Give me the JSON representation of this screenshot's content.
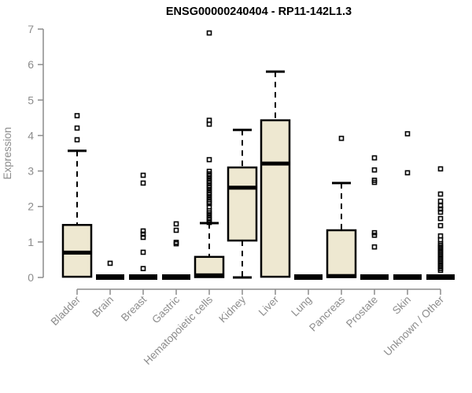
{
  "title": "ENSG00000240404 - RP11-142L1.3",
  "chart_data": {
    "type": "boxplot",
    "title": "ENSG00000240404 - RP11-142L1.3",
    "xlabel": "",
    "ylabel": "Expression",
    "ylim": [
      0,
      7
    ],
    "yticks": [
      0,
      1,
      2,
      3,
      4,
      5,
      6,
      7
    ],
    "grid": false,
    "legend": null,
    "colors": {
      "box_fill": "#EEE8D1",
      "box_stroke": "#000000",
      "median": "#000000",
      "whisker": "#000000",
      "outlier": "#000000",
      "axis": "#8C8C8C",
      "tick_label": "#8C8C8C",
      "title": "#000000",
      "background": "#FFFFFF"
    },
    "categories": [
      "Bladder",
      "Brain",
      "Breast",
      "Gastric",
      "Hematopoietic cells",
      "Kidney",
      "Liver",
      "Lung",
      "Pancreas",
      "Prostate",
      "Skin",
      "Unknown / Other"
    ],
    "boxes": [
      {
        "category": "Bladder",
        "flat": false,
        "q1": 0.02,
        "median": 0.7,
        "q3": 1.48,
        "whisker_low": null,
        "whisker_high": 3.57,
        "outliers": [
          4.56,
          4.21,
          3.88
        ]
      },
      {
        "category": "Brain",
        "flat": true,
        "q1": 0.0,
        "median": 0.02,
        "q3": 0.04,
        "whisker_low": null,
        "whisker_high": null,
        "outliers": [
          0.4
        ]
      },
      {
        "category": "Breast",
        "flat": true,
        "q1": 0.0,
        "median": 0.02,
        "q3": 0.04,
        "whisker_low": null,
        "whisker_high": null,
        "outliers": [
          2.88,
          2.66,
          1.31,
          1.22,
          1.13,
          0.71,
          0.25
        ]
      },
      {
        "category": "Gastric",
        "flat": true,
        "q1": 0.0,
        "median": 0.02,
        "q3": 0.04,
        "whisker_low": null,
        "whisker_high": null,
        "outliers": [
          1.51,
          1.33,
          0.99,
          0.95
        ]
      },
      {
        "category": "Hematopoietic cells",
        "flat": false,
        "q1": 0.01,
        "median": 0.06,
        "q3": 0.58,
        "whisker_low": null,
        "whisker_high": 1.53,
        "outliers": [
          6.89,
          4.43,
          4.32,
          3.32,
          2.99,
          2.92,
          2.86,
          2.79,
          2.72,
          2.66,
          2.59,
          2.53,
          2.46,
          2.39,
          2.33,
          2.26,
          2.19,
          2.13,
          2.08,
          1.99,
          1.88,
          1.82,
          1.75,
          1.68,
          1.62,
          1.55
        ]
      },
      {
        "category": "Kidney",
        "flat": false,
        "q1": 1.04,
        "median": 2.53,
        "q3": 3.1,
        "whisker_low": 0.0,
        "whisker_high": 4.16,
        "outliers": []
      },
      {
        "category": "Liver",
        "flat": false,
        "q1": 0.02,
        "median": 3.21,
        "q3": 4.43,
        "whisker_low": null,
        "whisker_high": 5.8,
        "outliers": []
      },
      {
        "category": "Lung",
        "flat": true,
        "q1": 0.0,
        "median": 0.02,
        "q3": 0.04,
        "whisker_low": null,
        "whisker_high": null,
        "outliers": []
      },
      {
        "category": "Pancreas",
        "flat": false,
        "q1": 0.01,
        "median": 0.04,
        "q3": 1.33,
        "whisker_low": null,
        "whisker_high": 2.66,
        "outliers": [
          3.92
        ]
      },
      {
        "category": "Prostate",
        "flat": true,
        "q1": 0.0,
        "median": 0.02,
        "q3": 0.04,
        "whisker_low": null,
        "whisker_high": null,
        "outliers": [
          3.37,
          3.03,
          2.74,
          2.68,
          1.26,
          1.19,
          0.86
        ]
      },
      {
        "category": "Skin",
        "flat": true,
        "q1": 0.0,
        "median": 0.02,
        "q3": 0.04,
        "whisker_low": null,
        "whisker_high": null,
        "outliers": [
          4.05,
          2.95
        ]
      },
      {
        "category": "Unknown / Other",
        "flat": true,
        "q1": 0.0,
        "median": 0.02,
        "q3": 0.04,
        "whisker_low": null,
        "whisker_high": null,
        "outliers": [
          3.06,
          2.35,
          2.15,
          2.02,
          1.93,
          1.84,
          1.66,
          1.46,
          1.17,
          1.06,
          0.95,
          0.9,
          0.85,
          0.8,
          0.75,
          0.7,
          0.65,
          0.6,
          0.55,
          0.5,
          0.45,
          0.4,
          0.35,
          0.3,
          0.25,
          0.2
        ]
      }
    ]
  }
}
